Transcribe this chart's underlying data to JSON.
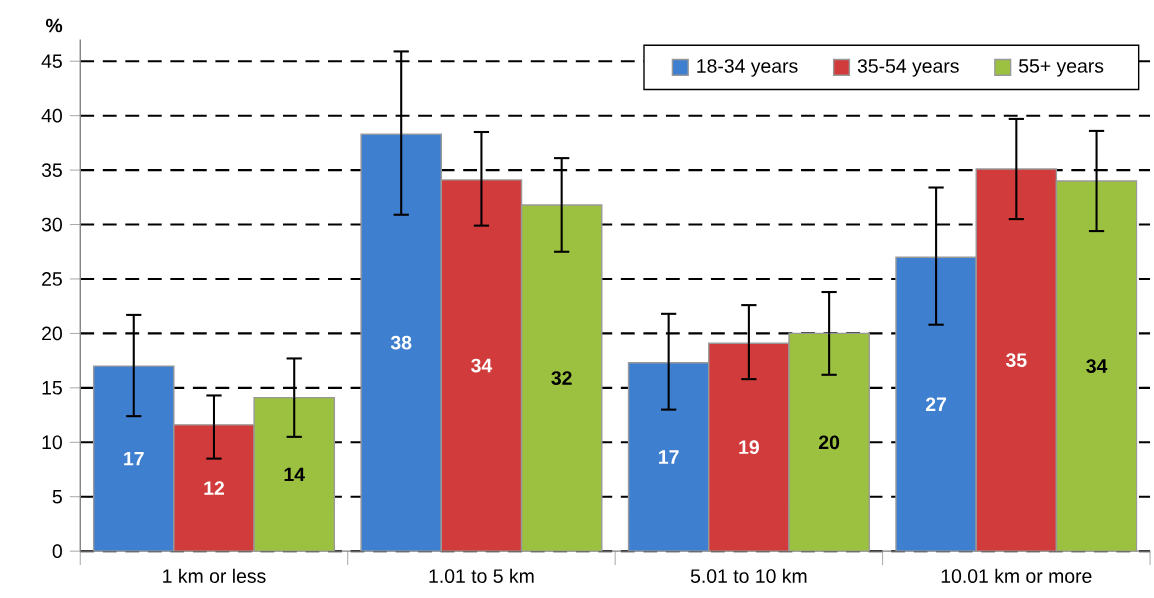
{
  "chart_data": {
    "type": "bar",
    "ylabel": "%",
    "categories": [
      "1 km or less",
      "1.01 to 5 km",
      "5.01 to 10 km",
      "10.01 km or more"
    ],
    "series": [
      {
        "name": "18-34 years",
        "color": "#3f7fcf",
        "values": [
          17.0,
          38.3,
          17.3,
          27.0
        ],
        "errors": [
          [
            12.4,
            21.7
          ],
          [
            30.9,
            45.9
          ],
          [
            13.0,
            21.8
          ],
          [
            20.8,
            33.4
          ]
        ],
        "value_labels": [
          "17",
          "38",
          "17",
          "27"
        ]
      },
      {
        "name": "35-54 years",
        "color": "#d13b3b",
        "values": [
          11.6,
          34.1,
          19.1,
          35.1
        ],
        "errors": [
          [
            8.5,
            14.3
          ],
          [
            29.9,
            38.5
          ],
          [
            15.8,
            22.6
          ],
          [
            30.5,
            39.7
          ]
        ],
        "value_labels": [
          "12",
          "34",
          "19",
          "35"
        ]
      },
      {
        "name": "55+ years",
        "color": "#9cc03f",
        "values": [
          14.1,
          31.8,
          20.0,
          34.0
        ],
        "errors": [
          [
            10.5,
            17.7
          ],
          [
            27.5,
            36.1
          ],
          [
            16.2,
            23.8
          ],
          [
            29.4,
            38.6
          ]
        ],
        "value_labels": [
          "14",
          "32",
          "20",
          "34"
        ]
      }
    ],
    "ylim": [
      0,
      47
    ],
    "yticks": [
      0,
      5,
      10,
      15,
      20,
      25,
      30,
      35,
      40,
      45
    ],
    "grid": "y",
    "legend": "top right"
  }
}
